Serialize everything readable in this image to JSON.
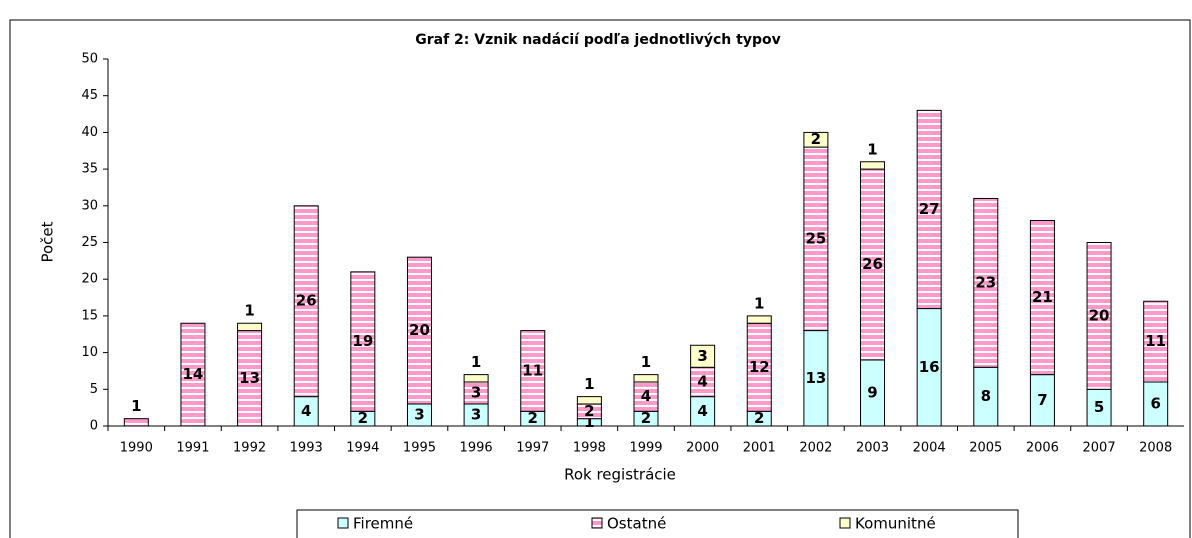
{
  "chart_data": {
    "type": "stacked_bar",
    "title": "Graf 2: Vznik nadácií podľa jednotlivých typov",
    "x_label": "Rok registrácie",
    "y_label": "Počet",
    "categories": [
      "1990",
      "1991",
      "1992",
      "1993",
      "1994",
      "1995",
      "1996",
      "1997",
      "1998",
      "1999",
      "2000",
      "2001",
      "2002",
      "2003",
      "2004",
      "2005",
      "2006",
      "2007",
      "2008"
    ],
    "series": [
      {
        "name": "Firemné",
        "color": "#ccffff",
        "values": [
          null,
          null,
          null,
          4,
          2,
          3,
          3,
          2,
          1,
          2,
          4,
          2,
          13,
          9,
          16,
          8,
          7,
          5,
          6
        ]
      },
      {
        "name": "Ostatné",
        "color": "#ff99cc",
        "values": [
          1,
          14,
          13,
          26,
          19,
          20,
          3,
          11,
          2,
          4,
          4,
          12,
          25,
          26,
          27,
          23,
          21,
          20,
          11
        ]
      },
      {
        "name": "Komunitné",
        "color": "#ffffcc",
        "values": [
          null,
          null,
          1,
          null,
          null,
          null,
          1,
          null,
          1,
          1,
          3,
          1,
          2,
          1,
          null,
          null,
          null,
          null,
          null
        ]
      }
    ],
    "ylim": [
      0,
      50
    ],
    "yticks": [
      0,
      5,
      10,
      15,
      20,
      25,
      30,
      35,
      40,
      45,
      50
    ],
    "legend": "bottom"
  }
}
